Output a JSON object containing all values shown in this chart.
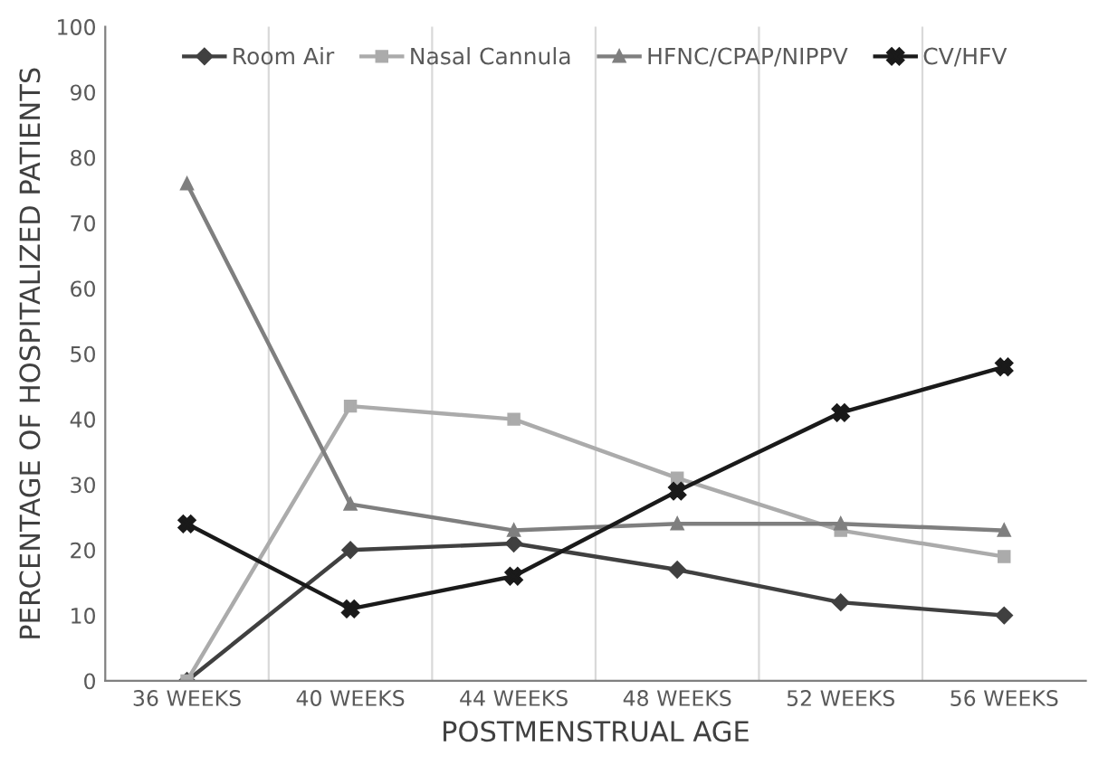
{
  "chart_data": {
    "type": "line",
    "xlabel": "POSTMENSTRUAL AGE",
    "ylabel": "PERCENTAGE OF HOSPITALIZED PATIENTS",
    "categories": [
      "36 WEEKS",
      "40 WEEKS",
      "44 WEEKS",
      "48 WEEKS",
      "52 WEEKS",
      "56 WEEKS"
    ],
    "series": [
      {
        "name": "Room Air",
        "color": "#404040",
        "marker": "diamond",
        "values": [
          0,
          20,
          21,
          17,
          12,
          10
        ]
      },
      {
        "name": "Nasal Cannula",
        "color": "#ababab",
        "marker": "square",
        "values": [
          0,
          42,
          40,
          31,
          23,
          19
        ]
      },
      {
        "name": "HFNC/CPAP/NIPPV",
        "color": "#7f7f7f",
        "marker": "triangle",
        "values": [
          76,
          27,
          23,
          24,
          24,
          23
        ]
      },
      {
        "name": "CV/HFV",
        "color": "#1a1a1a",
        "marker": "cross",
        "values": [
          24,
          11,
          16,
          29,
          41,
          48
        ]
      }
    ],
    "ylim": [
      0,
      100
    ],
    "yticks": [
      0,
      10,
      20,
      30,
      40,
      50,
      60,
      70,
      80,
      90,
      100
    ],
    "grid": "x",
    "legend": "top",
    "line_style": "solid"
  }
}
